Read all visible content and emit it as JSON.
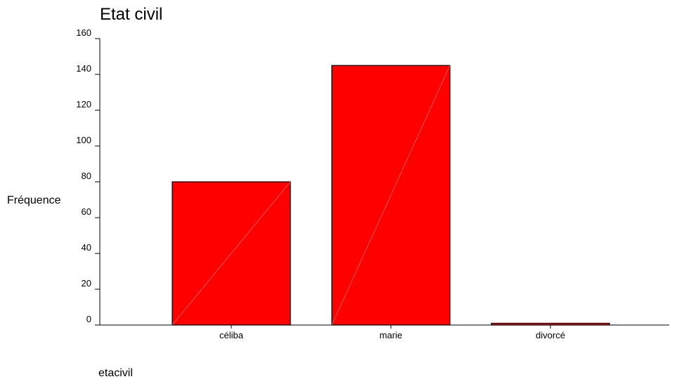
{
  "chart_data": {
    "type": "bar",
    "title": "Etat civil",
    "xlabel": "etacivil",
    "ylabel": "Fréquence",
    "categories": [
      "céliba",
      "marie",
      "divorcé"
    ],
    "values": [
      80,
      145,
      1
    ],
    "ylim": [
      0,
      160
    ],
    "yticks": [
      0,
      20,
      40,
      60,
      80,
      100,
      120,
      140,
      160
    ],
    "grid": false,
    "legend": "none",
    "colors": {
      "bar_fill": "#ff0000",
      "bar_stroke": "#000000",
      "bar_diagonal": "#ff6a6a",
      "axis": "#000000"
    }
  }
}
